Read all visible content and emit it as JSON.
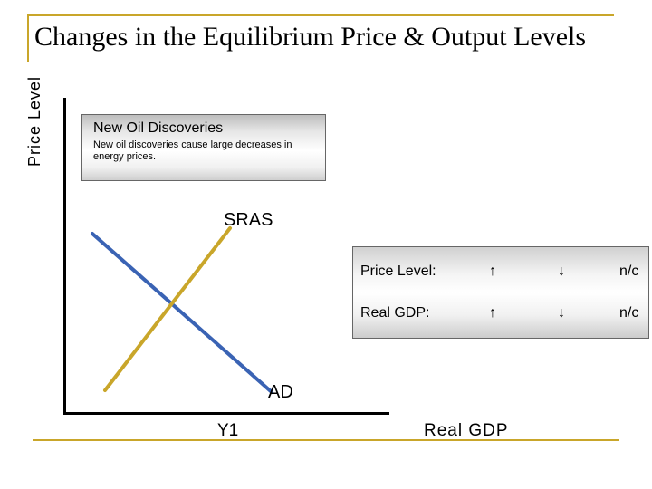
{
  "title": "Changes in the Equilibrium Price & Output Levels",
  "y_axis_label": "Price Level",
  "x_axis_label": "Real GDP",
  "callout": {
    "title": "New Oil Discoveries",
    "body": "New oil discoveries cause large decreases in energy prices."
  },
  "curves": {
    "sras_label": "SRAS",
    "ad_label": "AD",
    "sras_color": "#c9a62a",
    "ad_color": "#3a63b4"
  },
  "equilibrium_label": "Y1",
  "effects": {
    "rows": [
      {
        "label": "Price Level:",
        "up": "↑",
        "down": "↓",
        "nc": "n/c"
      },
      {
        "label": "Real GDP:",
        "up": "↑",
        "down": "↓",
        "nc": "n/c"
      }
    ]
  },
  "colors": {
    "frame": "#c9a62a"
  }
}
